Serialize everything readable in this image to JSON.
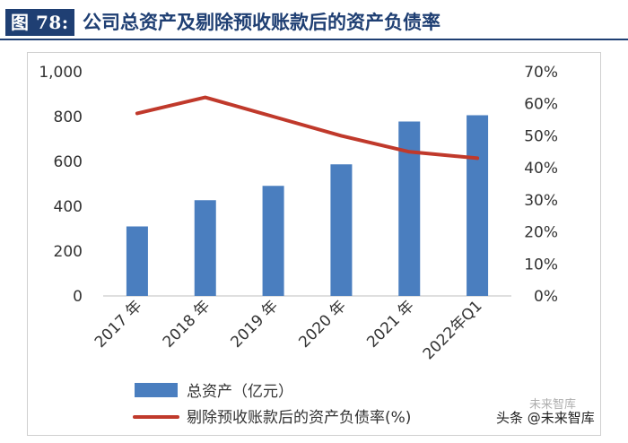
{
  "header": {
    "figure_label": "图 78:",
    "title": "公司总资产及剔除预收账款后的资产负债率"
  },
  "chart_data": {
    "type": "bar",
    "title": "",
    "categories": [
      "2017 年",
      "2018 年",
      "2019 年",
      "2020 年",
      "2021 年",
      "2022年Q1"
    ],
    "series": [
      {
        "name": "总资产（亿元）",
        "type": "bar",
        "axis": "left",
        "color": "#4a7ebf",
        "values": [
          310,
          427,
          491,
          587,
          778,
          806
        ]
      },
      {
        "name": "剔除预收账款后的资产负债率(%)",
        "type": "line",
        "axis": "right",
        "color": "#c0392b",
        "values": [
          57,
          62,
          56,
          50,
          45,
          43
        ]
      }
    ],
    "y_left": {
      "min": 0,
      "max": 1000,
      "ticks": [
        "0",
        "200",
        "400",
        "600",
        "800",
        "1,000"
      ]
    },
    "y_right": {
      "min": 0,
      "max": 70,
      "ticks": [
        "0%",
        "10%",
        "20%",
        "30%",
        "40%",
        "50%",
        "60%",
        "70%"
      ]
    },
    "grid": false,
    "legend_position": "bottom-left"
  },
  "watermark": {
    "text": "头条 @未来智库",
    "logo_text": "未来智库"
  }
}
